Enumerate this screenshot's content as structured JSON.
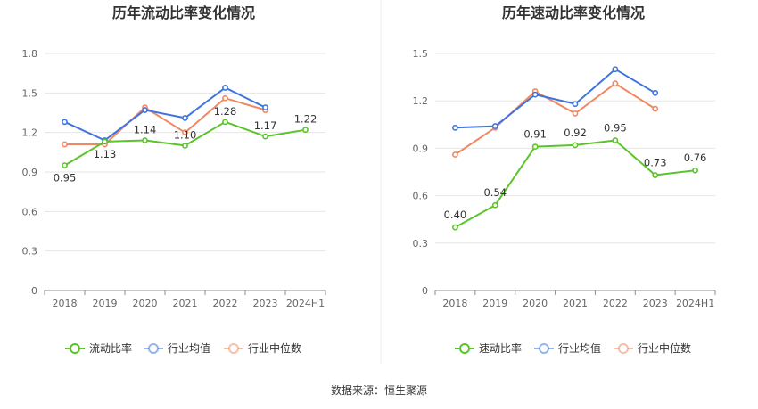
{
  "source_note": "数据来源：恒生聚源",
  "colors": {
    "company": "#5bc42a",
    "industry_avg": "#3f74e0",
    "industry_median": "#f08862",
    "grid": "#e6e6e6",
    "axis": "#8c8c8c",
    "divider": "#eeeeee"
  },
  "chart_data": [
    {
      "type": "line",
      "title": "历年流动比率变化情况",
      "categories": [
        "2018",
        "2019",
        "2020",
        "2021",
        "2022",
        "2023",
        "2024H1"
      ],
      "ylim": [
        0,
        1.8
      ],
      "yticks": [
        0,
        0.3,
        0.6,
        0.9,
        1.2,
        1.5,
        1.8
      ],
      "ytick_labels": [
        "0",
        "0.3",
        "0.6",
        "0.9",
        "1.2",
        "1.5",
        "1.8"
      ],
      "grid": true,
      "legend_position": "bottom",
      "series": [
        {
          "name": "流动比率",
          "role": "company",
          "values": [
            0.95,
            1.13,
            1.14,
            1.1,
            1.28,
            1.17,
            1.22
          ],
          "labels": [
            "0.95",
            "1.13",
            "1.14",
            "1.10",
            "1.28",
            "1.17",
            "1.22"
          ]
        },
        {
          "name": "行业均值",
          "role": "industry_avg",
          "values": [
            1.28,
            1.14,
            1.37,
            1.31,
            1.54,
            1.39,
            null
          ]
        },
        {
          "name": "行业中位数",
          "role": "industry_median",
          "values": [
            1.11,
            1.11,
            1.39,
            1.2,
            1.46,
            1.37,
            null
          ]
        }
      ]
    },
    {
      "type": "line",
      "title": "历年速动比率变化情况",
      "categories": [
        "2018",
        "2019",
        "2020",
        "2021",
        "2022",
        "2023",
        "2024H1"
      ],
      "ylim": [
        0,
        1.5
      ],
      "yticks": [
        0,
        0.3,
        0.6,
        0.9,
        1.2,
        1.5
      ],
      "ytick_labels": [
        "0",
        "0.3",
        "0.6",
        "0.9",
        "1.2",
        "1.5"
      ],
      "grid": true,
      "legend_position": "bottom",
      "series": [
        {
          "name": "速动比率",
          "role": "company",
          "values": [
            0.4,
            0.54,
            0.91,
            0.92,
            0.95,
            0.73,
            0.76
          ],
          "labels": [
            "0.40",
            "0.54",
            "0.91",
            "0.92",
            "0.95",
            "0.73",
            "0.76"
          ]
        },
        {
          "name": "行业均值",
          "role": "industry_avg",
          "values": [
            1.03,
            1.04,
            1.24,
            1.18,
            1.4,
            1.25,
            null
          ]
        },
        {
          "name": "行业中位数",
          "role": "industry_median",
          "values": [
            0.86,
            1.03,
            1.26,
            1.12,
            1.31,
            1.15,
            null
          ]
        }
      ]
    }
  ]
}
